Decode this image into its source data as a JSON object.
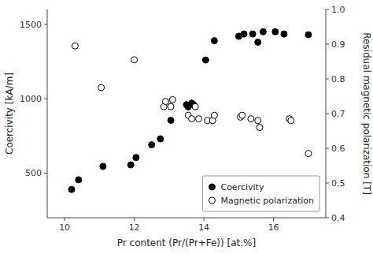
{
  "chart_data": {
    "type": "scatter",
    "xlabel": "Pr content (Pr/(Pr+Fe)) [at.%]",
    "ylabel": "Coercivity [kA/m]",
    "y2label": "Residual magnetic polarization [T]",
    "xlim": [
      9.5,
      17.5
    ],
    "xticks": [
      10,
      12,
      14,
      16
    ],
    "ylim": [
      200,
      1600
    ],
    "yticks": [
      500,
      1000,
      1500
    ],
    "y2lim": [
      0.4,
      1.0
    ],
    "y2ticks": [
      0.4,
      0.5,
      0.6,
      0.7,
      0.8,
      0.9,
      {
        "value": 1.0,
        "label": "1.0"
      }
    ],
    "grid": false,
    "legend": "lower right",
    "series": [
      {
        "name": "Coercivity",
        "color": "black",
        "marker": "circle",
        "x": [
          10.2,
          10.4,
          11.1,
          11.9,
          12.05,
          12.5,
          12.75,
          13.05,
          13.5,
          13.55,
          13.65,
          13.7,
          14.05,
          14.3,
          15.0,
          15.15,
          15.4,
          15.55,
          15.7,
          16.05,
          16.3,
          17.0
        ],
        "values": [
          390,
          455,
          545,
          555,
          605,
          690,
          730,
          855,
          960,
          945,
          970,
          960,
          1260,
          1390,
          1420,
          1435,
          1435,
          1380,
          1450,
          1450,
          1435,
          1430
        ]
      },
      {
        "name": "Magnetic polarization",
        "color": "black",
        "marker": "open-circle",
        "axis": "y2",
        "x": [
          10.3,
          11.05,
          12.0,
          12.85,
          12.9,
          13.05,
          13.1,
          13.55,
          13.65,
          13.75,
          13.85,
          14.1,
          14.25,
          14.3,
          15.05,
          15.1,
          15.35,
          15.55,
          15.6,
          16.45,
          16.5,
          17.0
        ],
        "values": [
          0.895,
          0.775,
          0.855,
          0.72,
          0.735,
          0.72,
          0.74,
          0.695,
          0.685,
          0.72,
          0.685,
          0.68,
          0.68,
          0.695,
          0.69,
          0.695,
          0.685,
          0.68,
          0.66,
          0.685,
          0.68,
          0.585
        ]
      }
    ]
  }
}
